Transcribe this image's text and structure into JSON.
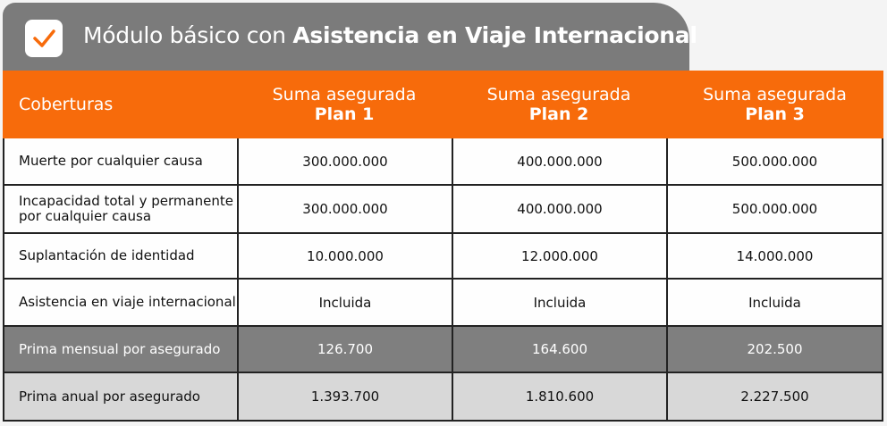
{
  "title": {
    "prefix": "Módulo básico con",
    "emphasis": "Asistencia en Viaje Internacional"
  },
  "table": {
    "header": [
      {
        "line1": "Coberturas"
      },
      {
        "line1": "Suma asegurada",
        "line2": "Plan 1"
      },
      {
        "line1": "Suma asegurada",
        "line2": "Plan 2"
      },
      {
        "line1": "Suma asegurada",
        "line2": "Plan 3"
      }
    ],
    "rows": [
      [
        "Muerte por cualquier causa",
        "300.000.000",
        "400.000.000",
        "500.000.000"
      ],
      [
        "Incapacidad total y permanente por cualquier causa",
        "300.000.000",
        "400.000.000",
        "500.000.000"
      ],
      [
        "Suplantación de identidad",
        "10.000.000",
        "12.000.000",
        "14.000.000"
      ],
      [
        "Asistencia en viaje internacional",
        "Incluida",
        "Incluida",
        "Incluida"
      ],
      [
        "Prima mensual por asegurado",
        "126.700",
        "164.600",
        "202.500"
      ],
      [
        "Prima anual por asegurado",
        "1.393.700",
        "1.810.600",
        "2.227.500"
      ]
    ]
  }
}
